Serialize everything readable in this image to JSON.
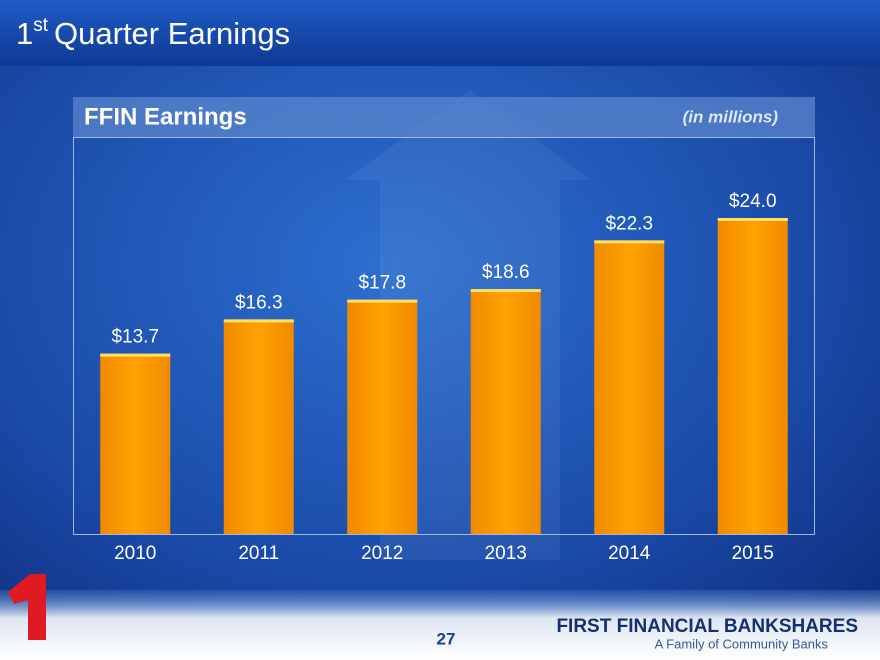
{
  "slide": {
    "title": {
      "ordinal": "1",
      "superscript": "st",
      "text": "Quarter Earnings"
    },
    "page_number": "27",
    "brand": "FIRST FINANCIAL BANKSHARES",
    "tagline": "A Family of Community Banks"
  },
  "chart_data": {
    "type": "bar",
    "title": "FFIN Earnings",
    "subtitle": "(in millions)",
    "categories": [
      "2010",
      "2011",
      "2012",
      "2013",
      "2014",
      "2015"
    ],
    "values": [
      13.7,
      16.3,
      17.8,
      18.6,
      22.3,
      24.0
    ],
    "value_labels": [
      "$13.7",
      "$16.3",
      "$17.8",
      "$18.6",
      "$22.3",
      "$24.0"
    ],
    "color": "#ff9a00"
  }
}
